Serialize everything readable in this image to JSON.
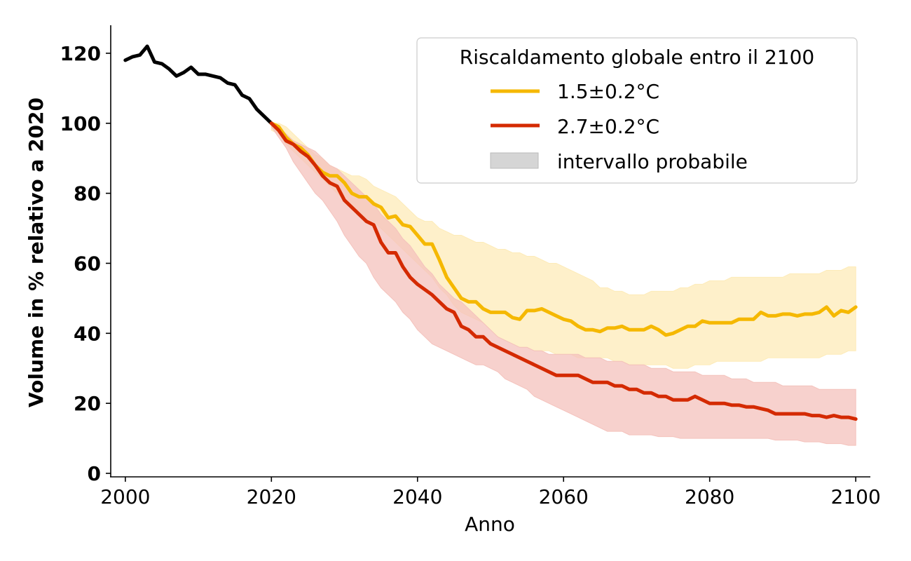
{
  "chart_data": {
    "type": "line",
    "title": "",
    "xlabel": "Anno",
    "ylabel": "Volume in % relativo a 2020",
    "xlim": [
      1998,
      2102
    ],
    "ylim": [
      -1,
      128
    ],
    "xticks": [
      2000,
      2020,
      2040,
      2060,
      2080,
      2100
    ],
    "yticks": [
      0,
      20,
      40,
      60,
      80,
      100,
      120
    ],
    "grid": false,
    "legend_placement": "top-right",
    "legend_title": "Riscaldamento globale entro il 2100",
    "series": [
      {
        "name": "",
        "color": "#000000",
        "x": [
          2000,
          2001,
          2002,
          2003,
          2004,
          2005,
          2006,
          2007,
          2008,
          2009,
          2010,
          2011,
          2012,
          2013,
          2014,
          2015,
          2016,
          2017,
          2018,
          2019,
          2020
        ],
        "values": [
          118,
          119,
          119.5,
          122,
          117.5,
          117,
          115.5,
          113.5,
          114.5,
          116,
          114,
          114,
          113.5,
          113,
          111.5,
          111,
          108,
          107,
          104,
          102,
          100
        ]
      },
      {
        "name": "1.5±0.2°C",
        "color": "#F5B800",
        "band_color": "#FDEBB8",
        "x": [
          2020,
          2021,
          2022,
          2023,
          2024,
          2025,
          2026,
          2027,
          2028,
          2029,
          2030,
          2031,
          2032,
          2033,
          2034,
          2035,
          2036,
          2037,
          2038,
          2039,
          2040,
          2041,
          2042,
          2043,
          2044,
          2045,
          2046,
          2047,
          2048,
          2049,
          2050,
          2051,
          2052,
          2053,
          2054,
          2055,
          2056,
          2057,
          2058,
          2059,
          2060,
          2061,
          2062,
          2063,
          2064,
          2065,
          2066,
          2067,
          2068,
          2069,
          2070,
          2071,
          2072,
          2073,
          2074,
          2075,
          2076,
          2077,
          2078,
          2079,
          2080,
          2081,
          2082,
          2083,
          2084,
          2085,
          2086,
          2087,
          2088,
          2089,
          2090,
          2091,
          2092,
          2093,
          2094,
          2095,
          2096,
          2097,
          2098,
          2099,
          2100
        ],
        "values": [
          100,
          99,
          96,
          94,
          93,
          91,
          88,
          86,
          85,
          85,
          83,
          80,
          79,
          79,
          77,
          76,
          73,
          73.5,
          71,
          70.5,
          68,
          65.5,
          65.5,
          61,
          56,
          53,
          50,
          49,
          49,
          47,
          46,
          46,
          46,
          44.5,
          44,
          46.5,
          46.5,
          47,
          46,
          45,
          44,
          43.5,
          42,
          41,
          41,
          40.5,
          41.5,
          41.5,
          42,
          41,
          41,
          41,
          42,
          41,
          39.5,
          40,
          41,
          42,
          42,
          43.5,
          43,
          43,
          43,
          43,
          44,
          44,
          44,
          46,
          45,
          45,
          45.5,
          45.5,
          45,
          45.5,
          45.5,
          46,
          47.5,
          45,
          46.5,
          46,
          47.5
        ],
        "upper": [
          100,
          100,
          99,
          97,
          95,
          93,
          91,
          90,
          88,
          87,
          86,
          85,
          85,
          84,
          82,
          81,
          80,
          79,
          77,
          75,
          73,
          72,
          72,
          70,
          69,
          68,
          68,
          67,
          66,
          66,
          65,
          64,
          64,
          63,
          63,
          62,
          62,
          61,
          60,
          60,
          59,
          58,
          57,
          56,
          55,
          53,
          53,
          52,
          52,
          51,
          51,
          51,
          52,
          52,
          52,
          52,
          53,
          53,
          54,
          54,
          55,
          55,
          55,
          56,
          56,
          56,
          56,
          56,
          56,
          56,
          56,
          57,
          57,
          57,
          57,
          57,
          58,
          58,
          58,
          59,
          59
        ],
        "lower": [
          98,
          97,
          94,
          92,
          90,
          88,
          86,
          84,
          82,
          80,
          78,
          76,
          75,
          73,
          72,
          70,
          68,
          66,
          64,
          62,
          60,
          58,
          56,
          53,
          51,
          48,
          46,
          45,
          44,
          43,
          41,
          39,
          38,
          37,
          36,
          36,
          35,
          35,
          35,
          34,
          34,
          34,
          33,
          33,
          33,
          33,
          33,
          32,
          32,
          31,
          31,
          31,
          31,
          31,
          31,
          30,
          30,
          30,
          31,
          31,
          31,
          32,
          32,
          32,
          32,
          32,
          32,
          32,
          33,
          33,
          33,
          33,
          33,
          33,
          33,
          33,
          34,
          34,
          34,
          35,
          35
        ]
      },
      {
        "name": "2.7±0.2°C",
        "color": "#D42A00",
        "band_color": "#F4C2BC",
        "x": [
          2020,
          2021,
          2022,
          2023,
          2024,
          2025,
          2026,
          2027,
          2028,
          2029,
          2030,
          2031,
          2032,
          2033,
          2034,
          2035,
          2036,
          2037,
          2038,
          2039,
          2040,
          2041,
          2042,
          2043,
          2044,
          2045,
          2046,
          2047,
          2048,
          2049,
          2050,
          2051,
          2052,
          2053,
          2054,
          2055,
          2056,
          2057,
          2058,
          2059,
          2060,
          2061,
          2062,
          2063,
          2064,
          2065,
          2066,
          2067,
          2068,
          2069,
          2070,
          2071,
          2072,
          2073,
          2074,
          2075,
          2076,
          2077,
          2078,
          2079,
          2080,
          2081,
          2082,
          2083,
          2084,
          2085,
          2086,
          2087,
          2088,
          2089,
          2090,
          2091,
          2092,
          2093,
          2094,
          2095,
          2096,
          2097,
          2098,
          2099,
          2100
        ],
        "values": [
          100,
          98,
          95,
          94,
          92,
          90.5,
          88,
          85,
          83,
          82,
          78,
          76,
          74,
          72,
          71,
          66,
          63,
          63,
          59,
          56,
          54,
          52.5,
          51,
          49,
          47,
          46,
          42,
          41,
          39,
          39,
          37,
          36,
          35,
          34,
          33,
          32,
          31,
          30,
          29,
          28,
          28,
          28,
          28,
          27,
          26,
          26,
          26,
          25,
          25,
          24,
          24,
          23,
          23,
          22,
          22,
          21,
          21,
          21,
          22,
          21,
          20,
          20,
          20,
          19.5,
          19.5,
          19,
          19,
          18.5,
          18,
          17,
          17,
          17,
          17,
          17,
          16.5,
          16.5,
          16,
          16.5,
          16,
          16,
          15.5
        ],
        "upper": [
          100,
          99,
          97,
          95,
          94,
          93,
          92,
          90,
          88,
          87,
          85,
          83,
          81,
          79,
          77,
          74,
          72,
          70,
          67,
          65,
          62,
          59,
          57,
          54,
          52,
          50,
          49,
          47,
          45,
          43,
          41,
          39,
          38,
          37,
          36,
          36,
          35,
          35,
          34,
          34,
          34,
          34,
          34,
          33,
          33,
          33,
          32,
          32,
          32,
          31,
          31,
          31,
          30,
          30,
          30,
          29,
          29,
          29,
          29,
          28,
          28,
          28,
          28,
          27,
          27,
          27,
          26,
          26,
          26,
          26,
          25,
          25,
          25,
          25,
          25,
          24,
          24,
          24,
          24,
          24,
          24
        ],
        "lower": [
          99,
          96,
          93,
          89,
          86,
          83,
          80,
          78,
          75,
          72,
          68,
          65,
          62,
          60,
          56,
          53,
          51,
          49,
          46,
          44,
          41,
          39,
          37,
          36,
          35,
          34,
          33,
          32,
          31,
          31,
          30,
          29,
          27,
          26,
          25,
          24,
          22,
          21,
          20,
          19,
          18,
          17,
          16,
          15,
          14,
          13,
          12,
          12,
          12,
          11,
          11,
          11,
          11,
          10.5,
          10.5,
          10.5,
          10,
          10,
          10,
          10,
          10,
          10,
          10,
          10,
          10,
          10,
          10,
          10,
          10,
          9.5,
          9.5,
          9.5,
          9.5,
          9,
          9,
          9,
          8.5,
          8.5,
          8.5,
          8,
          8
        ]
      }
    ],
    "band_legend_label": "intervallo probabile",
    "band_legend_color": "#D5D5D5"
  }
}
